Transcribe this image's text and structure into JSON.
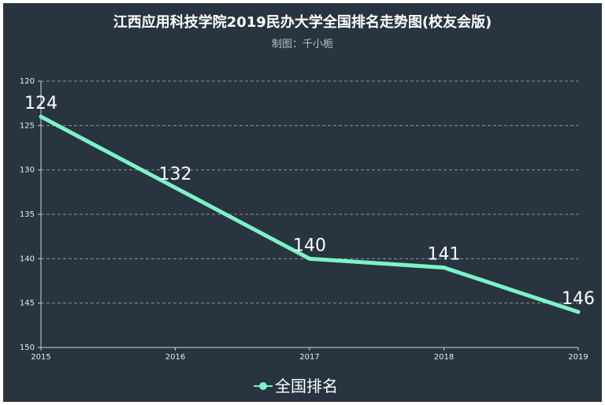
{
  "chart_data": {
    "type": "line",
    "title": "江西应用科技学院2019民办大学全国排名走势图(校友会版)",
    "subtitle": "制图：千小栀",
    "x": [
      "2015",
      "2016",
      "2017",
      "2018",
      "2019"
    ],
    "series": [
      {
        "name": "全国排名",
        "values": [
          124,
          132,
          140,
          141,
          146
        ],
        "color": "#7df2c8"
      }
    ],
    "y_ticks": [
      "120",
      "125",
      "130",
      "135",
      "140",
      "145",
      "150"
    ],
    "ylim": [
      120,
      150
    ],
    "y_inverted": true,
    "grid": true,
    "legend_position": "bottom-center"
  },
  "colors": {
    "background": "#283440",
    "title": "#ffffff",
    "subtitle": "#b8bfc6",
    "axis": "#cfd5da",
    "grid": "#8a949c",
    "tick_label": "#e6ebef",
    "data_label": "#ffffff",
    "legend_text": "#ffffff"
  }
}
